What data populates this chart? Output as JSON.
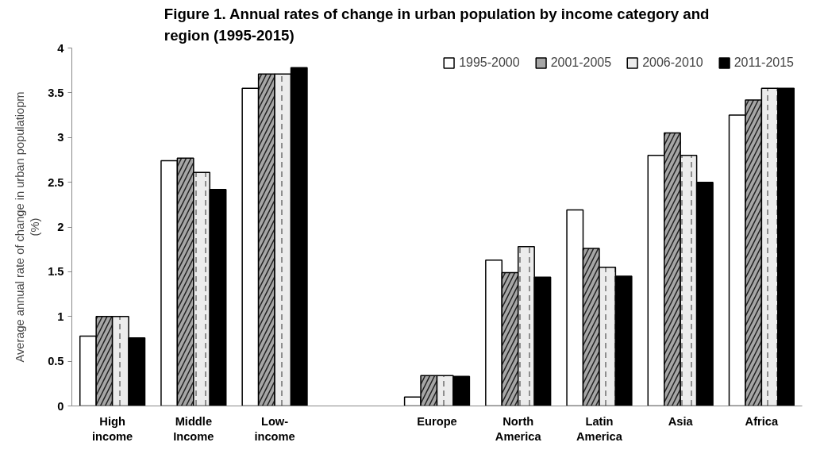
{
  "chart_data": {
    "type": "bar",
    "title": "Figure 1. Annual rates of change in urban population by income category and region (1995-2015)",
    "ylabel": "Average annual rate of change in urban populatiopm (%)",
    "categories": [
      "High income",
      "Middle Income",
      "Low-income",
      null,
      "Europe",
      "North America",
      "Latin America",
      "Asia",
      "Africa"
    ],
    "series": [
      {
        "name": "1995-2000",
        "color": "#ffffff",
        "values": [
          0.78,
          2.74,
          3.55,
          null,
          0.1,
          1.63,
          2.19,
          2.8,
          3.25
        ]
      },
      {
        "name": "2001-2005",
        "color": "#a6a6a6",
        "values": [
          1.0,
          2.77,
          3.71,
          null,
          0.34,
          1.49,
          1.76,
          3.05,
          3.42
        ]
      },
      {
        "name": "2006-2010",
        "color": "#ececec",
        "values": [
          1.0,
          2.61,
          3.71,
          null,
          0.34,
          1.78,
          1.55,
          2.8,
          3.55
        ]
      },
      {
        "name": "2011-2015",
        "color": "#000000",
        "values": [
          0.76,
          2.42,
          3.78,
          null,
          0.33,
          1.44,
          1.45,
          2.5,
          3.55
        ]
      }
    ],
    "ylim": [
      0,
      4
    ],
    "yticks": [
      0,
      0.5,
      1,
      1.5,
      2,
      2.5,
      3,
      3.5,
      4
    ],
    "grid": false,
    "legend": "top right"
  }
}
